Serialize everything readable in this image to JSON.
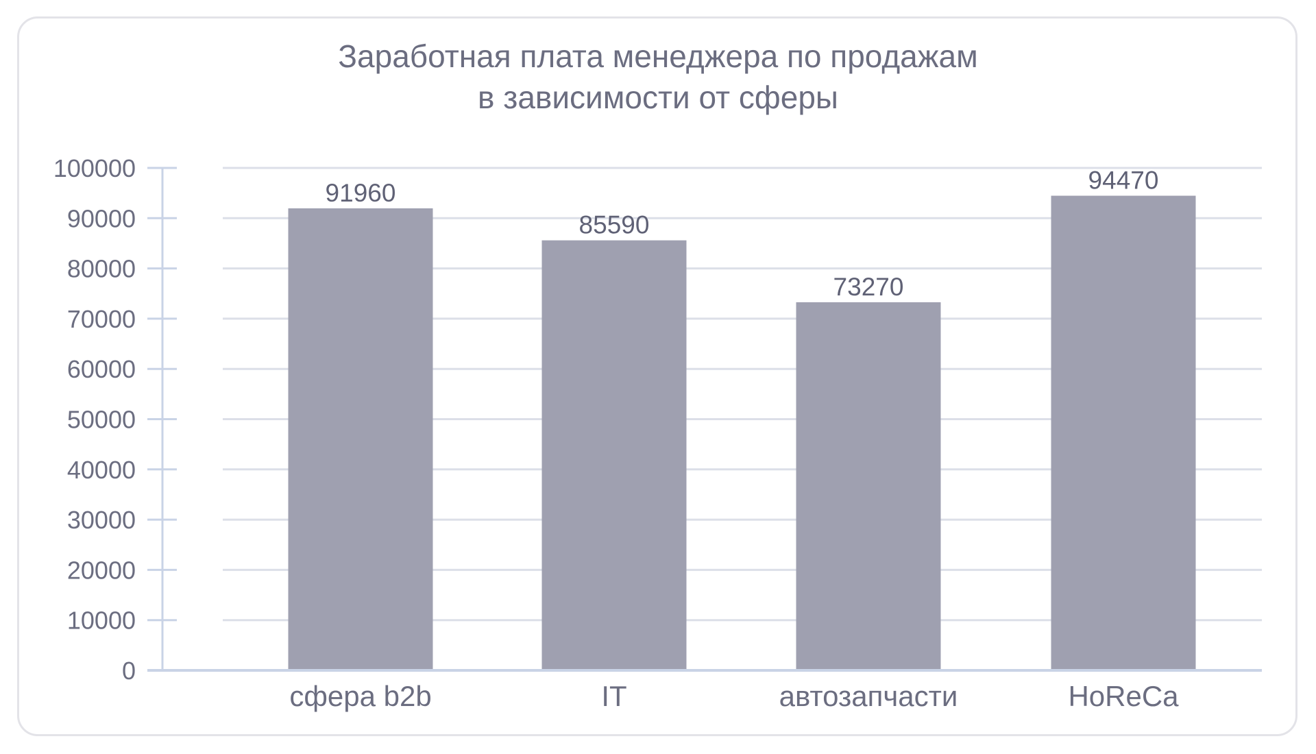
{
  "chart_data": {
    "type": "bar",
    "title_lines": [
      "Заработная плата менеджера по продажам",
      "в зависимости от сферы"
    ],
    "categories": [
      "сфера b2b",
      "IT",
      "автозапчасти",
      "HoReCa"
    ],
    "values": [
      91960,
      85590,
      73270,
      94470
    ],
    "data_labels": [
      "91960",
      "85590",
      "73270",
      "94470"
    ],
    "yticks": [
      0,
      10000,
      20000,
      30000,
      40000,
      50000,
      60000,
      70000,
      80000,
      90000,
      100000
    ],
    "ylim": [
      0,
      100000
    ],
    "xlabel": "",
    "ylabel": "",
    "grid": true,
    "legend": "none",
    "colors": {
      "bar": "#9fa0b0",
      "grid": "#dcdfe8",
      "axis": "#c9d3e6",
      "text": "#6b6d80",
      "border": "#e3e3e8"
    }
  }
}
